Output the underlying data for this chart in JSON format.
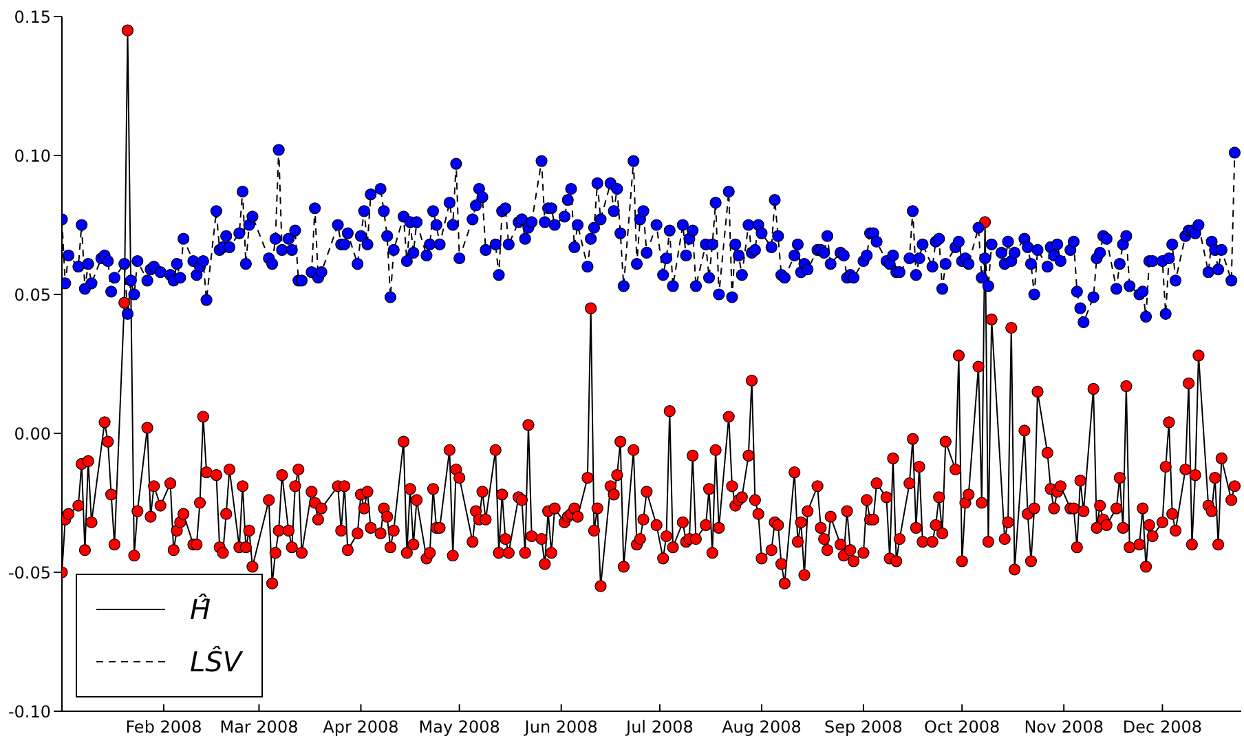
{
  "chart_data": {
    "type": "line",
    "xlim": [
      "2008-01-01",
      "2008-12-25"
    ],
    "ylim": [
      -0.1,
      0.15
    ],
    "xticks": [
      {
        "value": "2008-02-01",
        "label": "Feb 2008"
      },
      {
        "value": "2008-03-01",
        "label": "Mar 2008"
      },
      {
        "value": "2008-04-01",
        "label": "Apr 2008"
      },
      {
        "value": "2008-05-01",
        "label": "May 2008"
      },
      {
        "value": "2008-06-01",
        "label": "Jun 2008"
      },
      {
        "value": "2008-07-01",
        "label": "Jul 2008"
      },
      {
        "value": "2008-08-01",
        "label": "Aug 2008"
      },
      {
        "value": "2008-09-01",
        "label": "Sep 2008"
      },
      {
        "value": "2008-10-01",
        "label": "Oct 2008"
      },
      {
        "value": "2008-11-01",
        "label": "Nov 2008"
      },
      {
        "value": "2008-12-01",
        "label": "Dec 2008"
      }
    ],
    "yticks": [
      {
        "value": -0.1,
        "label": "-0.10"
      },
      {
        "value": -0.05,
        "label": "-0.05"
      },
      {
        "value": 0,
        "label": "0.00"
      },
      {
        "value": 0.05,
        "label": "0.05"
      },
      {
        "value": 0.1,
        "label": "0.10"
      },
      {
        "value": 0.15,
        "label": "0.15"
      }
    ],
    "legend": "bottom left",
    "marker": "circle",
    "series": [
      {
        "name": "Ĥ̂",
        "color": "#ff0000",
        "line_style": "solid",
        "x": [
          "2008-01-01",
          "2008-01-02",
          "2008-01-03",
          "2008-01-06",
          "2008-01-07",
          "2008-01-08",
          "2008-01-09",
          "2008-01-10",
          "2008-01-14",
          "2008-01-15",
          "2008-01-16",
          "2008-01-17",
          "2008-01-20",
          "2008-01-21",
          "2008-01-23",
          "2008-01-24",
          "2008-01-27",
          "2008-01-28",
          "2008-01-29",
          "2008-01-31",
          "2008-02-03",
          "2008-02-04",
          "2008-02-05",
          "2008-02-06",
          "2008-02-07",
          "2008-02-10",
          "2008-02-11",
          "2008-02-12",
          "2008-02-13",
          "2008-02-14",
          "2008-02-17",
          "2008-02-18",
          "2008-02-19",
          "2008-02-20",
          "2008-02-21",
          "2008-02-24",
          "2008-02-25",
          "2008-02-26",
          "2008-02-27",
          "2008-02-28",
          "2008-03-04",
          "2008-03-05",
          "2008-03-06",
          "2008-03-07",
          "2008-03-08",
          "2008-03-10",
          "2008-03-11",
          "2008-03-12",
          "2008-03-13",
          "2008-03-14",
          "2008-03-17",
          "2008-03-18",
          "2008-03-19",
          "2008-03-20",
          "2008-03-25",
          "2008-03-26",
          "2008-03-27",
          "2008-03-28",
          "2008-03-31",
          "2008-04-01",
          "2008-04-02",
          "2008-04-03",
          "2008-04-04",
          "2008-04-07",
          "2008-04-08",
          "2008-04-09",
          "2008-04-10",
          "2008-04-11",
          "2008-04-14",
          "2008-04-15",
          "2008-04-16",
          "2008-04-17",
          "2008-04-18",
          "2008-04-21",
          "2008-04-22",
          "2008-04-23",
          "2008-04-24",
          "2008-04-25",
          "2008-04-28",
          "2008-04-29",
          "2008-04-30",
          "2008-05-01",
          "2008-05-05",
          "2008-05-06",
          "2008-05-07",
          "2008-05-08",
          "2008-05-09",
          "2008-05-12",
          "2008-05-13",
          "2008-05-14",
          "2008-05-15",
          "2008-05-16",
          "2008-05-19",
          "2008-05-20",
          "2008-05-21",
          "2008-05-22",
          "2008-05-23",
          "2008-05-26",
          "2008-05-27",
          "2008-05-28",
          "2008-05-29",
          "2008-05-30",
          "2008-06-02",
          "2008-06-03",
          "2008-06-04",
          "2008-06-05",
          "2008-06-06",
          "2008-06-09",
          "2008-06-10",
          "2008-06-11",
          "2008-06-12",
          "2008-06-13",
          "2008-06-16",
          "2008-06-17",
          "2008-06-18",
          "2008-06-19",
          "2008-06-20",
          "2008-06-23",
          "2008-06-24",
          "2008-06-25",
          "2008-06-26",
          "2008-06-27",
          "2008-06-30",
          "2008-07-02",
          "2008-07-03",
          "2008-07-04",
          "2008-07-05",
          "2008-07-08",
          "2008-07-09",
          "2008-07-10",
          "2008-07-11",
          "2008-07-12",
          "2008-07-15",
          "2008-07-16",
          "2008-07-17",
          "2008-07-18",
          "2008-07-19",
          "2008-07-22",
          "2008-07-23",
          "2008-07-24",
          "2008-07-25",
          "2008-07-26",
          "2008-07-28",
          "2008-07-29",
          "2008-07-30",
          "2008-07-31",
          "2008-08-01",
          "2008-08-04",
          "2008-08-05",
          "2008-08-06",
          "2008-08-07",
          "2008-08-08",
          "2008-08-11",
          "2008-08-12",
          "2008-08-13",
          "2008-08-14",
          "2008-08-15",
          "2008-08-18",
          "2008-08-19",
          "2008-08-20",
          "2008-08-21",
          "2008-08-22",
          "2008-08-25",
          "2008-08-26",
          "2008-08-27",
          "2008-08-28",
          "2008-08-29",
          "2008-09-01",
          "2008-09-02",
          "2008-09-03",
          "2008-09-04",
          "2008-09-05",
          "2008-09-08",
          "2008-09-09",
          "2008-09-10",
          "2008-09-11",
          "2008-09-12",
          "2008-09-15",
          "2008-09-16",
          "2008-09-17",
          "2008-09-18",
          "2008-09-19",
          "2008-09-22",
          "2008-09-23",
          "2008-09-24",
          "2008-09-25",
          "2008-09-26",
          "2008-09-29",
          "2008-09-30",
          "2008-10-01",
          "2008-10-02",
          "2008-10-03",
          "2008-10-06",
          "2008-10-07",
          "2008-10-08",
          "2008-10-09",
          "2008-10-10",
          "2008-10-14",
          "2008-10-15",
          "2008-10-16",
          "2008-10-17",
          "2008-10-20",
          "2008-10-21",
          "2008-10-22",
          "2008-10-23",
          "2008-10-24",
          "2008-10-27",
          "2008-10-28",
          "2008-10-29",
          "2008-10-30",
          "2008-10-31",
          "2008-11-03",
          "2008-11-04",
          "2008-11-05",
          "2008-11-06",
          "2008-11-07",
          "2008-11-10",
          "2008-11-11",
          "2008-11-12",
          "2008-11-13",
          "2008-11-14",
          "2008-11-17",
          "2008-11-18",
          "2008-11-19",
          "2008-11-20",
          "2008-11-21",
          "2008-11-24",
          "2008-11-25",
          "2008-11-26",
          "2008-11-27",
          "2008-11-28",
          "2008-12-01",
          "2008-12-02",
          "2008-12-03",
          "2008-12-04",
          "2008-12-05",
          "2008-12-08",
          "2008-12-09",
          "2008-12-10",
          "2008-12-11",
          "2008-12-12",
          "2008-12-15",
          "2008-12-16",
          "2008-12-17",
          "2008-12-18",
          "2008-12-19",
          "2008-12-22",
          "2008-12-23"
        ],
        "values": [
          -0.05,
          -0.031,
          -0.029,
          -0.026,
          -0.011,
          -0.042,
          -0.01,
          -0.032,
          0.004,
          -0.003,
          -0.022,
          -0.04,
          0.047,
          0.145,
          -0.044,
          -0.028,
          0.002,
          -0.03,
          -0.019,
          -0.026,
          -0.018,
          -0.042,
          -0.035,
          -0.032,
          -0.029,
          -0.04,
          -0.04,
          -0.025,
          0.006,
          -0.014,
          -0.015,
          -0.041,
          -0.043,
          -0.029,
          -0.013,
          -0.041,
          -0.019,
          -0.041,
          -0.035,
          -0.048,
          -0.024,
          -0.054,
          -0.043,
          -0.035,
          -0.015,
          -0.035,
          -0.041,
          -0.019,
          -0.013,
          -0.043,
          -0.021,
          -0.025,
          -0.031,
          -0.027,
          -0.019,
          -0.035,
          -0.019,
          -0.042,
          -0.036,
          -0.022,
          -0.027,
          -0.021,
          -0.034,
          -0.036,
          -0.027,
          -0.03,
          -0.041,
          -0.035,
          -0.003,
          -0.043,
          -0.02,
          -0.04,
          -0.024,
          -0.045,
          -0.043,
          -0.02,
          -0.034,
          -0.034,
          -0.006,
          -0.044,
          -0.013,
          -0.016,
          -0.039,
          -0.028,
          -0.031,
          -0.021,
          -0.031,
          -0.006,
          -0.043,
          -0.022,
          -0.038,
          -0.043,
          -0.023,
          -0.024,
          -0.043,
          0.003,
          -0.037,
          -0.038,
          -0.047,
          -0.028,
          -0.043,
          -0.027,
          -0.032,
          -0.03,
          -0.029,
          -0.027,
          -0.03,
          -0.016,
          0.045,
          -0.035,
          -0.027,
          -0.055,
          -0.019,
          -0.022,
          -0.015,
          -0.003,
          -0.048,
          -0.006,
          -0.04,
          -0.038,
          -0.031,
          -0.021,
          -0.033,
          -0.045,
          -0.037,
          0.008,
          -0.041,
          -0.032,
          -0.039,
          -0.038,
          -0.008,
          -0.038,
          -0.033,
          -0.02,
          -0.043,
          -0.006,
          -0.034,
          0.006,
          -0.019,
          -0.026,
          -0.024,
          -0.023,
          -0.008,
          0.019,
          -0.024,
          -0.029,
          -0.045,
          -0.042,
          -0.032,
          -0.033,
          -0.047,
          -0.054,
          -0.014,
          -0.039,
          -0.032,
          -0.051,
          -0.028,
          -0.019,
          -0.034,
          -0.038,
          -0.042,
          -0.03,
          -0.04,
          -0.044,
          -0.028,
          -0.042,
          -0.046,
          -0.043,
          -0.024,
          -0.031,
          -0.031,
          -0.018,
          -0.023,
          -0.045,
          -0.009,
          -0.046,
          -0.038,
          -0.018,
          -0.002,
          -0.034,
          -0.012,
          -0.039,
          -0.039,
          -0.033,
          -0.023,
          -0.036,
          -0.003,
          -0.013,
          0.028,
          -0.046,
          -0.025,
          -0.022,
          0.024,
          -0.025,
          0.076,
          -0.039,
          0.041,
          -0.038,
          -0.032,
          0.038,
          -0.049,
          0.001,
          -0.029,
          -0.046,
          -0.027,
          0.015,
          -0.007,
          -0.02,
          -0.027,
          -0.021,
          -0.019,
          -0.027,
          -0.027,
          -0.041,
          -0.017,
          -0.028,
          0.016,
          -0.034,
          -0.026,
          -0.031,
          -0.033,
          -0.027,
          -0.016,
          -0.034,
          0.017,
          -0.041,
          -0.04,
          -0.027,
          -0.048,
          -0.033,
          -0.037,
          -0.032,
          -0.012,
          0.004,
          -0.029,
          -0.035,
          -0.013,
          0.018,
          -0.04,
          -0.015,
          0.028,
          -0.026,
          -0.028,
          -0.016,
          -0.04,
          -0.009,
          -0.024,
          -0.019
        ]
      },
      {
        "name": "LŜV",
        "color": "#0000ff",
        "line_style": "dashed",
        "x": [
          "2008-01-01",
          "2008-01-02",
          "2008-01-03",
          "2008-01-06",
          "2008-01-07",
          "2008-01-08",
          "2008-01-09",
          "2008-01-10",
          "2008-01-13",
          "2008-01-14",
          "2008-01-15",
          "2008-01-16",
          "2008-01-17",
          "2008-01-20",
          "2008-01-21",
          "2008-01-22",
          "2008-01-23",
          "2008-01-24",
          "2008-01-27",
          "2008-01-28",
          "2008-01-29",
          "2008-01-31",
          "2008-02-03",
          "2008-02-04",
          "2008-02-05",
          "2008-02-06",
          "2008-02-07",
          "2008-02-10",
          "2008-02-11",
          "2008-02-12",
          "2008-02-13",
          "2008-02-14",
          "2008-02-17",
          "2008-02-18",
          "2008-02-19",
          "2008-02-20",
          "2008-02-21",
          "2008-02-24",
          "2008-02-25",
          "2008-02-26",
          "2008-02-27",
          "2008-02-28",
          "2008-03-04",
          "2008-03-05",
          "2008-03-06",
          "2008-03-07",
          "2008-03-08",
          "2008-03-10",
          "2008-03-11",
          "2008-03-12",
          "2008-03-13",
          "2008-03-14",
          "2008-03-17",
          "2008-03-18",
          "2008-03-19",
          "2008-03-20",
          "2008-03-25",
          "2008-03-26",
          "2008-03-27",
          "2008-03-28",
          "2008-03-31",
          "2008-04-01",
          "2008-04-02",
          "2008-04-03",
          "2008-04-04",
          "2008-04-07",
          "2008-04-08",
          "2008-04-09",
          "2008-04-10",
          "2008-04-11",
          "2008-04-14",
          "2008-04-15",
          "2008-04-16",
          "2008-04-17",
          "2008-04-18",
          "2008-04-21",
          "2008-04-22",
          "2008-04-23",
          "2008-04-24",
          "2008-04-25",
          "2008-04-28",
          "2008-04-29",
          "2008-04-30",
          "2008-05-01",
          "2008-05-05",
          "2008-05-06",
          "2008-05-07",
          "2008-05-08",
          "2008-05-09",
          "2008-05-12",
          "2008-05-13",
          "2008-05-14",
          "2008-05-15",
          "2008-05-16",
          "2008-05-19",
          "2008-05-20",
          "2008-05-21",
          "2008-05-22",
          "2008-05-23",
          "2008-05-26",
          "2008-05-27",
          "2008-05-28",
          "2008-05-29",
          "2008-05-30",
          "2008-06-02",
          "2008-06-03",
          "2008-06-04",
          "2008-06-05",
          "2008-06-06",
          "2008-06-09",
          "2008-06-10",
          "2008-06-11",
          "2008-06-12",
          "2008-06-13",
          "2008-06-16",
          "2008-06-17",
          "2008-06-18",
          "2008-06-19",
          "2008-06-20",
          "2008-06-23",
          "2008-06-24",
          "2008-06-25",
          "2008-06-26",
          "2008-06-27",
          "2008-06-30",
          "2008-07-02",
          "2008-07-03",
          "2008-07-04",
          "2008-07-05",
          "2008-07-08",
          "2008-07-09",
          "2008-07-10",
          "2008-07-11",
          "2008-07-12",
          "2008-07-15",
          "2008-07-16",
          "2008-07-17",
          "2008-07-18",
          "2008-07-19",
          "2008-07-22",
          "2008-07-23",
          "2008-07-24",
          "2008-07-25",
          "2008-07-26",
          "2008-07-28",
          "2008-07-29",
          "2008-07-30",
          "2008-07-31",
          "2008-08-01",
          "2008-08-04",
          "2008-08-05",
          "2008-08-06",
          "2008-08-07",
          "2008-08-08",
          "2008-08-11",
          "2008-08-12",
          "2008-08-13",
          "2008-08-14",
          "2008-08-15",
          "2008-08-18",
          "2008-08-19",
          "2008-08-20",
          "2008-08-21",
          "2008-08-22",
          "2008-08-25",
          "2008-08-26",
          "2008-08-27",
          "2008-08-28",
          "2008-08-29",
          "2008-09-01",
          "2008-09-02",
          "2008-09-03",
          "2008-09-04",
          "2008-09-05",
          "2008-09-08",
          "2008-09-09",
          "2008-09-10",
          "2008-09-11",
          "2008-09-12",
          "2008-09-15",
          "2008-09-16",
          "2008-09-17",
          "2008-09-18",
          "2008-09-19",
          "2008-09-22",
          "2008-09-23",
          "2008-09-24",
          "2008-09-25",
          "2008-09-26",
          "2008-09-29",
          "2008-09-30",
          "2008-10-01",
          "2008-10-02",
          "2008-10-03",
          "2008-10-06",
          "2008-10-07",
          "2008-10-08",
          "2008-10-09",
          "2008-10-10",
          "2008-10-13",
          "2008-10-14",
          "2008-10-15",
          "2008-10-16",
          "2008-10-17",
          "2008-10-20",
          "2008-10-21",
          "2008-10-22",
          "2008-10-23",
          "2008-10-24",
          "2008-10-27",
          "2008-10-28",
          "2008-10-29",
          "2008-10-30",
          "2008-10-31",
          "2008-11-03",
          "2008-11-04",
          "2008-11-05",
          "2008-11-06",
          "2008-11-07",
          "2008-11-10",
          "2008-11-11",
          "2008-11-12",
          "2008-11-13",
          "2008-11-14",
          "2008-11-17",
          "2008-11-18",
          "2008-11-19",
          "2008-11-20",
          "2008-11-21",
          "2008-11-24",
          "2008-11-25",
          "2008-11-26",
          "2008-11-27",
          "2008-11-28",
          "2008-12-01",
          "2008-12-02",
          "2008-12-03",
          "2008-12-04",
          "2008-12-05",
          "2008-12-08",
          "2008-12-09",
          "2008-12-10",
          "2008-12-11",
          "2008-12-12",
          "2008-12-15",
          "2008-12-16",
          "2008-12-17",
          "2008-12-18",
          "2008-12-19",
          "2008-12-22",
          "2008-12-23"
        ],
        "values": [
          0.077,
          0.054,
          0.064,
          0.06,
          0.075,
          0.052,
          0.061,
          0.054,
          0.063,
          0.064,
          0.062,
          0.051,
          0.056,
          0.061,
          0.043,
          0.055,
          0.05,
          0.062,
          0.055,
          0.059,
          0.06,
          0.058,
          0.057,
          0.055,
          0.061,
          0.056,
          0.07,
          0.062,
          0.057,
          0.06,
          0.062,
          0.048,
          0.08,
          0.066,
          0.067,
          0.071,
          0.067,
          0.072,
          0.087,
          0.061,
          0.075,
          0.078,
          0.063,
          0.061,
          0.07,
          0.102,
          0.066,
          0.07,
          0.066,
          0.073,
          0.055,
          0.055,
          0.058,
          0.081,
          0.056,
          0.058,
          0.075,
          0.068,
          0.068,
          0.072,
          0.061,
          0.071,
          0.08,
          0.068,
          0.086,
          0.088,
          0.08,
          0.071,
          0.049,
          0.066,
          0.078,
          0.062,
          0.076,
          0.065,
          0.076,
          0.064,
          0.068,
          0.08,
          0.075,
          0.068,
          0.083,
          0.075,
          0.097,
          0.063,
          0.077,
          0.082,
          0.088,
          0.085,
          0.066,
          0.068,
          0.057,
          0.08,
          0.081,
          0.068,
          0.076,
          0.077,
          0.07,
          0.074,
          0.076,
          0.098,
          0.076,
          0.081,
          0.081,
          0.075,
          0.078,
          0.084,
          0.088,
          0.067,
          0.075,
          0.06,
          0.07,
          0.074,
          0.09,
          0.077,
          0.09,
          0.08,
          0.088,
          0.072,
          0.053,
          0.098,
          0.061,
          0.077,
          0.08,
          0.065,
          0.075,
          0.057,
          0.063,
          0.073,
          0.053,
          0.075,
          0.064,
          0.07,
          0.073,
          0.053,
          0.068,
          0.056,
          0.068,
          0.083,
          0.05,
          0.087,
          0.049,
          0.068,
          0.064,
          0.057,
          0.075,
          0.065,
          0.066,
          0.075,
          0.072,
          0.067,
          0.084,
          0.071,
          0.057,
          0.056,
          0.064,
          0.068,
          0.058,
          0.061,
          0.059,
          0.066,
          0.066,
          0.065,
          0.071,
          0.061,
          0.065,
          0.064,
          0.056,
          0.057,
          0.056,
          0.062,
          0.064,
          0.072,
          0.072,
          0.069,
          0.062,
          0.061,
          0.064,
          0.058,
          0.058,
          0.063,
          0.08,
          0.057,
          0.063,
          0.068,
          0.06,
          0.069,
          0.07,
          0.052,
          0.061,
          0.067,
          0.069,
          0.062,
          0.063,
          0.061,
          0.074,
          0.056,
          0.063,
          0.053,
          0.068,
          0.065,
          0.061,
          0.069,
          0.062,
          0.065,
          0.07,
          0.067,
          0.061,
          0.05,
          0.066,
          0.06,
          0.067,
          0.064,
          0.068,
          0.062,
          0.066,
          0.069,
          0.051,
          0.045,
          0.04,
          0.049,
          0.063,
          0.065,
          0.071,
          0.07,
          0.052,
          0.061,
          0.068,
          0.071,
          0.053,
          0.05,
          0.051,
          0.042,
          0.062,
          0.062,
          0.062,
          0.043,
          0.063,
          0.068,
          0.055,
          0.071,
          0.073,
          0.073,
          0.072,
          0.075,
          0.058,
          0.069,
          0.066,
          0.059,
          0.066,
          0.055,
          0.101
        ]
      }
    ]
  }
}
